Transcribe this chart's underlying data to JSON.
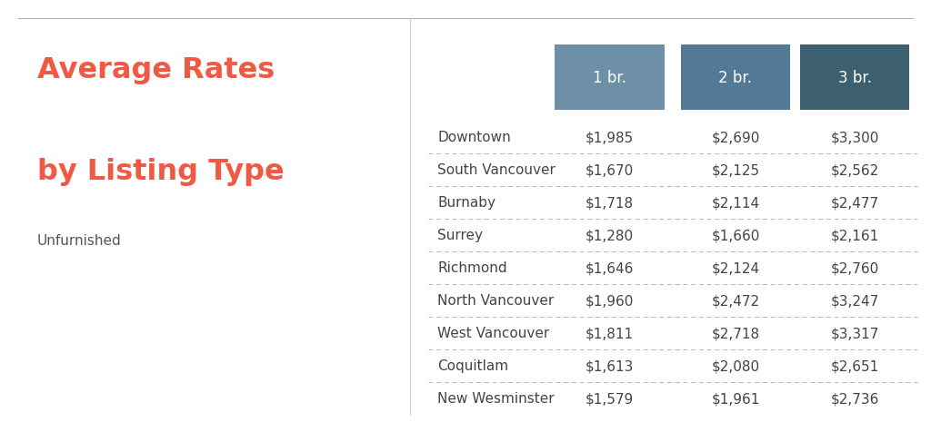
{
  "title_line1": "Average Rates",
  "title_line2": "by Listing Type",
  "subtitle": "Unfurnished",
  "title_color": "#f05a45",
  "subtitle_color": "#555555",
  "header_labels": [
    "1 br.",
    "2 br.",
    "3 br."
  ],
  "header_bg_colors": [
    "#6e8fa8",
    "#527a96",
    "#3d6070"
  ],
  "header_text_color": "#ffffff",
  "neighbourhoods": [
    "Downtown",
    "South Vancouver",
    "Burnaby",
    "Surrey",
    "Richmond",
    "North Vancouver",
    "West Vancouver",
    "Coquitlam",
    "New Wesminster"
  ],
  "values": [
    [
      "$1,985",
      "$2,690",
      "$3,300"
    ],
    [
      "$1,670",
      "$2,125",
      "$2,562"
    ],
    [
      "$1,718",
      "$2,114",
      "$2,477"
    ],
    [
      "$1,280",
      "$1,660",
      "$2,161"
    ],
    [
      "$1,646",
      "$2,124",
      "$2,760"
    ],
    [
      "$1,960",
      "$2,472",
      "$3,247"
    ],
    [
      "$1,811",
      "$2,718",
      "$3,317"
    ],
    [
      "$1,613",
      "$2,080",
      "$2,651"
    ],
    [
      "$1,579",
      "$1,961",
      "$2,736"
    ]
  ],
  "bg_color": "#ffffff",
  "divider_color": "#b8b8b8",
  "row_text_color": "#444444",
  "value_text_color": "#444444",
  "top_line_color": "#aaaaaa",
  "divider_panel_color": "#cccccc",
  "title_fontsize": 23,
  "subtitle_fontsize": 11,
  "header_fontsize": 12,
  "row_fontsize": 11
}
